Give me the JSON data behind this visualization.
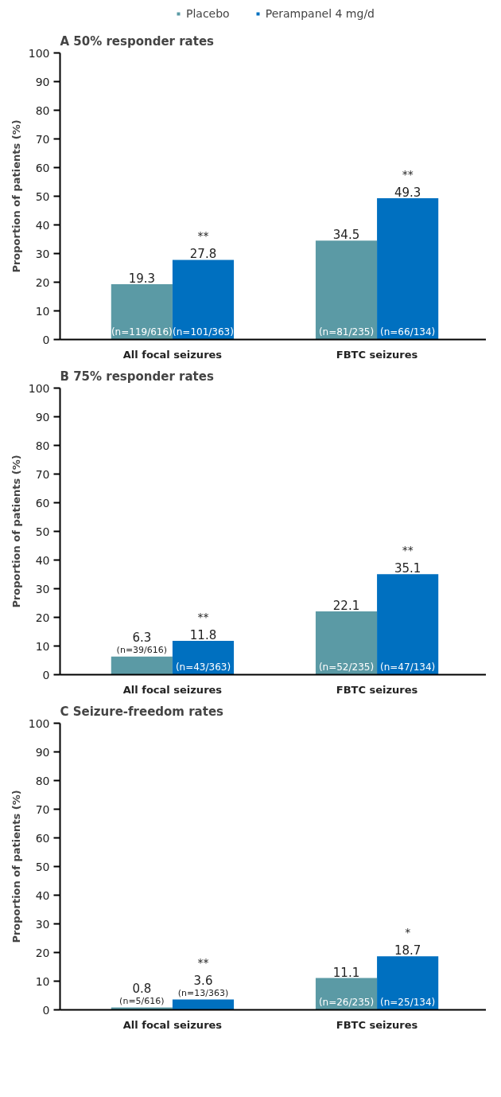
{
  "chart_data": [
    {
      "type": "bar",
      "title": "A 50% responder rates",
      "ylabel": "Proportion of patients (%)",
      "categories": [
        "All focal seizures",
        "FBTC seizures"
      ],
      "series": [
        {
          "name": "Placebo",
          "color": "#5b9aa5",
          "values": [
            19.3,
            34.5
          ]
        },
        {
          "name": "Perampanel 4 mg/d",
          "color": "#0070c0",
          "values": [
            27.8,
            49.3
          ]
        }
      ],
      "ylim": [
        0,
        100
      ],
      "yticks": [
        0,
        10,
        20,
        30,
        40,
        50,
        60,
        70,
        80,
        90,
        100
      ],
      "grid": false,
      "legend": "top",
      "data_labels": true,
      "annotations": [
        "(n=119/616)",
        "(n=101/363)",
        "(n=81/235)",
        "(n=66/134)",
        "**",
        "**"
      ]
    },
    {
      "type": "bar",
      "title": "B 75% responder rates",
      "ylabel": "Proportion of patients (%)",
      "categories": [
        "All focal seizures",
        "FBTC seizures"
      ],
      "series": [
        {
          "color": "#5b9aa5",
          "values": [
            6.3,
            22.1
          ]
        },
        {
          "color": "#0070c0",
          "values": [
            11.8,
            35.1
          ]
        }
      ],
      "ylim": [
        0,
        100
      ],
      "yticks": [
        0,
        10,
        20,
        30,
        40,
        50,
        60,
        70,
        80,
        90,
        100
      ],
      "grid": false,
      "data_labels": true,
      "annotations": [
        "(n=39/616)",
        "(n=43/363)",
        "(n=52/235)",
        "(n=47/134)",
        "**",
        "**"
      ]
    },
    {
      "type": "bar",
      "title": "C Seizure-freedom rates",
      "ylabel": "Proportion of patients (%)",
      "categories": [
        "All focal seizures",
        "FBTC seizures"
      ],
      "series": [
        {
          "color": "#5b9aa5",
          "values": [
            0.8,
            11.1
          ]
        },
        {
          "color": "#0070c0",
          "values": [
            3.6,
            18.7
          ]
        }
      ],
      "ylim": [
        0,
        100
      ],
      "yticks": [
        0,
        10,
        20,
        30,
        40,
        50,
        60,
        70,
        80,
        90,
        100
      ],
      "grid": false,
      "data_labels": true,
      "annotations": [
        "(n=5/616)",
        "(n=13/363)",
        "(n=26/235)",
        "(n=25/134)",
        "**",
        "*"
      ]
    }
  ]
}
